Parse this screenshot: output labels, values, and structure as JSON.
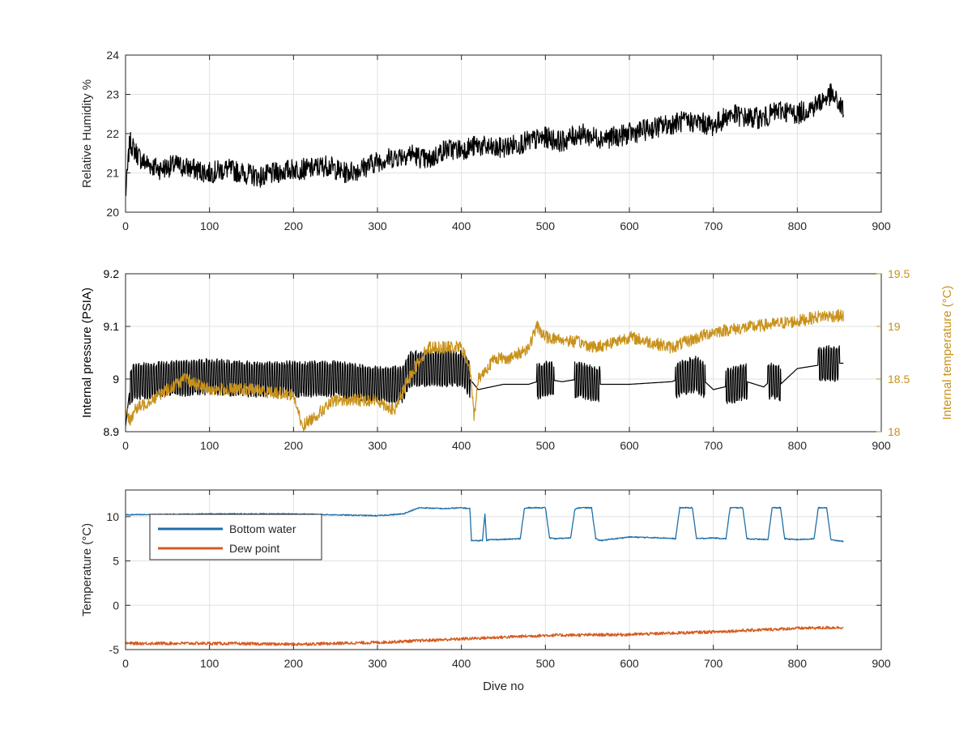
{
  "chart_data": [
    {
      "type": "line",
      "ylabel": "Relative Humidity %",
      "xlim": [
        0,
        900
      ],
      "ylim": [
        20,
        24
      ],
      "xticks": [
        0,
        100,
        200,
        300,
        400,
        500,
        600,
        700,
        800,
        900
      ],
      "yticks": [
        20,
        21,
        22,
        23,
        24
      ],
      "grid": true,
      "series": [
        {
          "color": "#000000",
          "x": [
            0,
            5,
            10,
            20,
            40,
            60,
            80,
            100,
            120,
            140,
            160,
            180,
            200,
            220,
            240,
            260,
            280,
            300,
            320,
            340,
            360,
            380,
            400,
            420,
            440,
            460,
            480,
            500,
            520,
            540,
            560,
            580,
            600,
            620,
            640,
            660,
            680,
            700,
            720,
            740,
            760,
            780,
            800,
            820,
            840,
            855
          ],
          "y": [
            20.4,
            21.8,
            21.6,
            21.3,
            21.1,
            21.2,
            21.1,
            21.0,
            21.1,
            21.0,
            20.9,
            21.0,
            21.1,
            21.1,
            21.2,
            21.0,
            21.1,
            21.3,
            21.4,
            21.5,
            21.3,
            21.6,
            21.6,
            21.7,
            21.6,
            21.7,
            21.8,
            21.9,
            21.8,
            22.0,
            21.9,
            21.9,
            22.0,
            22.1,
            22.2,
            22.3,
            22.3,
            22.2,
            22.5,
            22.4,
            22.4,
            22.6,
            22.5,
            22.7,
            23.0,
            22.6
          ],
          "noise": 0.55
        }
      ]
    },
    {
      "type": "line",
      "ylabel": "Internal pressure (PSIA)",
      "y2label": "Internal temperature (°C)",
      "xlim": [
        0,
        900
      ],
      "ylim": [
        8.9,
        9.2
      ],
      "y2lim": [
        18,
        19.5
      ],
      "xticks": [
        0,
        100,
        200,
        300,
        400,
        500,
        600,
        700,
        800,
        900
      ],
      "yticks": [
        8.9,
        9,
        9.1,
        9.2
      ],
      "y2ticks": [
        18,
        18.5,
        19,
        19.5
      ],
      "ytick_labels": [
        "8.9",
        "9",
        "9.1",
        "9.2"
      ],
      "y2tick_labels": [
        "18",
        "18.5",
        "19",
        "19.5"
      ],
      "grid": true,
      "series": [
        {
          "axis": "left",
          "color": "#000000",
          "x": [
            0,
            5,
            10,
            50,
            100,
            150,
            200,
            250,
            300,
            330,
            340,
            400,
            410,
            420,
            450,
            480,
            490,
            500,
            520,
            540,
            560,
            580,
            600,
            650,
            660,
            680,
            700,
            740,
            760,
            770,
            780,
            800,
            820,
            840,
            855
          ],
          "y": [
            8.91,
            8.98,
            8.995,
            9.0,
            9.005,
            9.0,
            9.0,
            9.0,
            8.99,
            8.99,
            9.02,
            9.02,
            9.0,
            8.98,
            8.99,
            8.99,
            8.995,
            9.0,
            8.995,
            9.0,
            8.99,
            8.99,
            8.99,
            8.995,
            9.0,
            9.01,
            8.98,
            8.995,
            8.985,
            9.0,
            8.99,
            9.02,
            9.025,
            9.03,
            9.03
          ],
          "band_ranges": [
            [
              5,
              410,
              0.06
            ],
            [
              490,
              510,
              0.06
            ],
            [
              535,
              565,
              0.06
            ],
            [
              655,
              690,
              0.06
            ],
            [
              715,
              740,
              0.06
            ],
            [
              765,
              780,
              0.06
            ],
            [
              825,
              850,
              0.06
            ]
          ]
        },
        {
          "axis": "right",
          "color": "#c8911a",
          "x": [
            0,
            5,
            10,
            30,
            50,
            70,
            100,
            150,
            200,
            210,
            250,
            300,
            320,
            340,
            360,
            400,
            410,
            415,
            420,
            440,
            460,
            480,
            490,
            500,
            540,
            560,
            600,
            650,
            700,
            750,
            800,
            830,
            855
          ],
          "y": [
            18.2,
            18.1,
            18.2,
            18.3,
            18.4,
            18.5,
            18.4,
            18.4,
            18.35,
            18.05,
            18.3,
            18.3,
            18.2,
            18.55,
            18.8,
            18.8,
            18.6,
            18.15,
            18.5,
            18.7,
            18.7,
            18.8,
            19.0,
            18.9,
            18.85,
            18.8,
            18.9,
            18.8,
            18.95,
            19.0,
            19.05,
            19.1,
            19.1
          ],
          "noise": 0.12
        }
      ]
    },
    {
      "type": "line",
      "ylabel": "Temperature (°C)",
      "xlabel": "Dive no",
      "xlim": [
        0,
        900
      ],
      "ylim": [
        -5,
        13
      ],
      "xticks": [
        0,
        100,
        200,
        300,
        400,
        500,
        600,
        700,
        800,
        900
      ],
      "yticks": [
        -5,
        0,
        5,
        10
      ],
      "grid": true,
      "legend": "top-left",
      "series": [
        {
          "name": "Bottom water",
          "color": "#1f6fa8",
          "x": [
            0,
            100,
            200,
            250,
            300,
            330,
            350,
            380,
            400,
            410,
            412,
            425,
            428,
            430,
            432,
            440,
            470,
            475,
            480,
            500,
            505,
            510,
            530,
            535,
            540,
            555,
            560,
            565,
            600,
            640,
            655,
            660,
            675,
            680,
            700,
            715,
            720,
            735,
            740,
            765,
            770,
            780,
            785,
            800,
            820,
            825,
            835,
            840,
            855
          ],
          "y": [
            10.2,
            10.3,
            10.3,
            10.2,
            10.1,
            10.3,
            11.0,
            10.9,
            11.0,
            10.9,
            7.3,
            7.3,
            10.3,
            7.3,
            7.4,
            7.4,
            7.5,
            10.9,
            11.0,
            11.0,
            7.6,
            7.5,
            7.6,
            10.8,
            11.0,
            11.0,
            7.5,
            7.3,
            7.7,
            7.6,
            7.5,
            11.0,
            11.0,
            7.5,
            7.6,
            7.5,
            11.0,
            11.0,
            7.5,
            7.4,
            11.0,
            11.0,
            7.5,
            7.4,
            7.5,
            11.0,
            11.0,
            7.4,
            7.2
          ],
          "noise": 0.12
        },
        {
          "name": "Dew point",
          "color": "#d45b1e",
          "x": [
            0,
            100,
            200,
            300,
            400,
            500,
            600,
            700,
            800,
            855
          ],
          "y": [
            -4.3,
            -4.3,
            -4.4,
            -4.2,
            -3.8,
            -3.4,
            -3.3,
            -3.0,
            -2.6,
            -2.5
          ],
          "noise": 0.35
        }
      ]
    }
  ]
}
